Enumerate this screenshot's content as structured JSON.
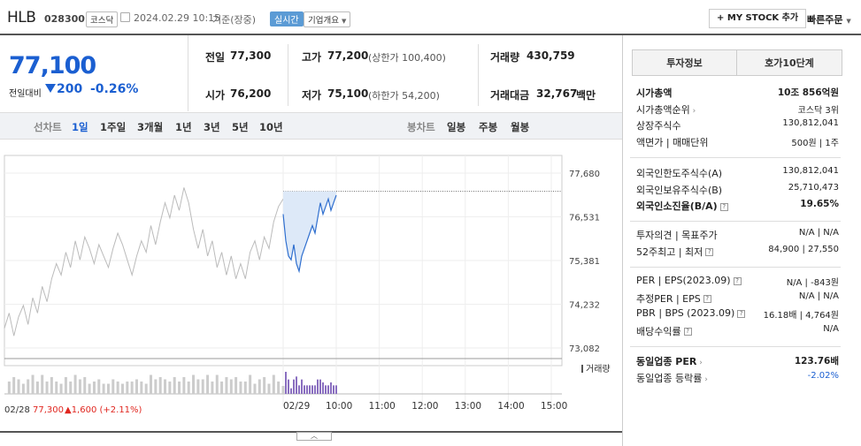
{
  "header": {
    "stock_name": "HLB",
    "stock_code": "028300",
    "market": "코스닥",
    "datetime": "2024.02.29 10:15",
    "basis": "기준(장중)",
    "realtime_label": "실시간",
    "company_overview": "기업개요",
    "my_stock_button": "MY STOCK 추가",
    "quick_order_button": "빠른주문"
  },
  "price": {
    "current": "77,100",
    "change_label": "전일대비",
    "change": "200",
    "change_pct": "-0.26%"
  },
  "summary": {
    "prev_label": "전일",
    "prev": "77,300",
    "open_label": "시가",
    "open": "76,200",
    "high_label": "고가",
    "high": "77,200",
    "upper_limit": "(상한가 100,400)",
    "low_label": "저가",
    "low": "75,100",
    "lower_limit": "(하한가 54,200)",
    "volume_label": "거래량",
    "volume": "430,759",
    "amount_label": "거래대금",
    "amount": "32,767",
    "amount_unit": "백만"
  },
  "chart_tabs": {
    "line_label": "선차트",
    "periods": [
      "1일",
      "1주일",
      "3개월",
      "1년",
      "3년",
      "5년",
      "10년"
    ],
    "candle_label": "봉차트",
    "candles": [
      "일봉",
      "주봉",
      "월봉"
    ]
  },
  "chart_data": {
    "type": "line",
    "y_ticks": [
      "77,680",
      "76,531",
      "75,381",
      "74,232",
      "73,082"
    ],
    "ylim": [
      73082,
      77680
    ],
    "x_ticks": [
      "02/29",
      "10:00",
      "11:00",
      "12:00",
      "13:00",
      "14:00",
      "15:00"
    ],
    "volume_legend": "거래량",
    "prev_day": {
      "label": "02/28",
      "close": "77,300",
      "change": "▲1,600 (+2.11%)",
      "values": [
        73600,
        74000,
        73400,
        73900,
        74200,
        73700,
        74400,
        74000,
        74700,
        74300,
        74900,
        75300,
        75000,
        75600,
        75200,
        75900,
        75400,
        76000,
        75700,
        75300,
        75800,
        75500,
        75200,
        75700,
        76100,
        75800,
        75400,
        75000,
        75500,
        75900,
        75600,
        76300,
        75800,
        76400,
        76900,
        76500,
        77100,
        76700,
        77300,
        76900,
        76200,
        75700,
        76200,
        75500,
        75900,
        75200,
        75600,
        75000,
        75500,
        74900,
        75300,
        74900,
        75600,
        75900,
        75400,
        76000,
        75700,
        76400,
        76800,
        77000
      ]
    },
    "today": {
      "values": [
        76600,
        75900,
        75500,
        75400,
        75800,
        75300,
        75100,
        75500,
        75700,
        75900,
        76100,
        76300,
        76100,
        76500,
        76900,
        76600,
        76800,
        77000,
        76700,
        76900,
        77100
      ],
      "high": 77200
    }
  },
  "invest": {
    "tab1": "투자정보",
    "tab2": "호가10단계",
    "rows1": [
      {
        "label": "시가총액",
        "value": "10조 856억원"
      },
      {
        "label": "시가총액순위",
        "value": "코스닥 3위"
      },
      {
        "label": "상장주식수",
        "value": "130,812,041"
      },
      {
        "label": "액면가 | 매매단위",
        "value": "500원 | 1주"
      }
    ],
    "rows2": [
      {
        "label": "외국인한도주식수(A)",
        "value": "130,812,041"
      },
      {
        "label": "외국인보유주식수(B)",
        "value": "25,710,473"
      },
      {
        "label": "외국인소진율(B/A)",
        "value": "19.65%"
      }
    ],
    "rows3": [
      {
        "label": "투자의견 | 목표주가",
        "value": "N/A | N/A"
      },
      {
        "label": "52주최고 | 최저",
        "value": "84,900 | 27,550"
      }
    ],
    "rows4": [
      {
        "label": "PER | EPS(2023.09)",
        "value": "N/A | -843원"
      },
      {
        "label": "추정PER | EPS",
        "value": "N/A | N/A"
      },
      {
        "label": "PBR | BPS (2023.09)",
        "value": "16.18배 | 4,764원"
      },
      {
        "label": "배당수익률",
        "value": "N/A"
      }
    ],
    "rows5": [
      {
        "label": "동일업종 PER",
        "value": "123.76배"
      },
      {
        "label": "동일업종 등락률",
        "value": "-2.02%"
      }
    ],
    "colors": {
      "up": "#e0261f",
      "down": "#1b5fd1"
    }
  }
}
